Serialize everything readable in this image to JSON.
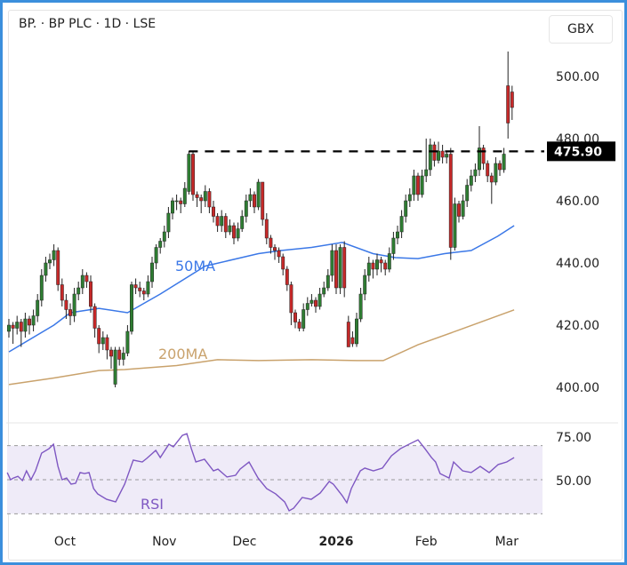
{
  "header": {
    "title": "BP. · BP PLC · 1D · LSE",
    "currency_button": "GBX"
  },
  "chart_data": {
    "type": "candlestick",
    "title": "BP. · BP PLC · 1D · LSE",
    "price_axis": {
      "ticks": [
        "500.00",
        "480.00",
        "460.00",
        "440.00",
        "420.00",
        "400.00"
      ],
      "tick_values": [
        500,
        480,
        460,
        440,
        420,
        400
      ],
      "range": [
        387,
        512
      ]
    },
    "x_axis": {
      "labels": [
        "Oct",
        "Nov",
        "Dec",
        "2026",
        "Feb",
        "Mar"
      ],
      "label_index": [
        13.7,
        38,
        57.6,
        80,
        102,
        121.7
      ]
    },
    "reference_line": {
      "value": 475.9,
      "label": "475.90",
      "start_index": 44,
      "style": "dashed"
    },
    "candles_ohlc": [
      [
        418,
        422,
        416,
        420
      ],
      [
        420,
        421,
        414,
        419
      ],
      [
        419,
        423,
        417,
        421
      ],
      [
        421,
        422,
        413,
        418
      ],
      [
        418,
        424,
        416,
        422
      ],
      [
        422,
        423,
        417,
        420
      ],
      [
        420,
        425,
        418,
        423
      ],
      [
        423,
        430,
        421,
        428
      ],
      [
        428,
        438,
        426,
        436
      ],
      [
        436,
        442,
        434,
        440
      ],
      [
        440,
        443,
        438,
        441
      ],
      [
        441,
        446,
        439,
        444
      ],
      [
        444,
        445,
        431,
        433
      ],
      [
        433,
        435,
        426,
        428
      ],
      [
        428,
        430,
        422,
        425
      ],
      [
        425,
        427,
        420,
        423
      ],
      [
        423,
        432,
        421,
        430
      ],
      [
        430,
        434,
        428,
        432
      ],
      [
        432,
        438,
        430,
        436
      ],
      [
        436,
        437,
        432,
        434
      ],
      [
        434,
        436,
        424,
        426
      ],
      [
        426,
        427,
        416,
        419
      ],
      [
        419,
        420,
        411,
        414
      ],
      [
        414,
        418,
        412,
        416
      ],
      [
        416,
        417,
        409,
        412
      ],
      [
        412,
        413,
        406,
        410
      ],
      [
        401,
        413,
        400,
        412
      ],
      [
        412,
        413,
        407,
        409
      ],
      [
        409,
        413,
        407,
        411
      ],
      [
        411,
        420,
        410,
        418
      ],
      [
        418,
        434,
        417,
        433
      ],
      [
        433,
        435,
        430,
        432
      ],
      [
        432,
        434,
        429,
        431
      ],
      [
        431,
        432,
        428,
        430
      ],
      [
        430,
        436,
        429,
        434
      ],
      [
        434,
        442,
        432,
        440
      ],
      [
        440,
        446,
        438,
        445
      ],
      [
        445,
        448,
        443,
        447
      ],
      [
        447,
        452,
        445,
        450
      ],
      [
        450,
        458,
        448,
        456
      ],
      [
        456,
        461,
        454,
        460
      ],
      [
        460,
        462,
        457,
        460
      ],
      [
        460,
        461,
        456,
        459
      ],
      [
        459,
        466,
        458,
        464
      ],
      [
        463,
        476,
        462,
        475
      ],
      [
        475,
        476,
        460,
        462
      ],
      [
        462,
        463,
        458,
        461
      ],
      [
        461,
        462,
        456,
        460
      ],
      [
        460,
        465,
        458,
        463
      ],
      [
        463,
        464,
        456,
        458
      ],
      [
        458,
        460,
        453,
        455
      ],
      [
        455,
        456,
        450,
        452
      ],
      [
        452,
        457,
        450,
        455
      ],
      [
        455,
        456,
        448,
        450
      ],
      [
        450,
        454,
        449,
        452
      ],
      [
        452,
        453,
        446,
        448
      ],
      [
        448,
        453,
        447,
        451
      ],
      [
        451,
        457,
        450,
        455
      ],
      [
        455,
        462,
        453,
        460
      ],
      [
        460,
        464,
        458,
        462
      ],
      [
        462,
        463,
        456,
        458
      ],
      [
        458,
        467,
        457,
        466
      ],
      [
        466,
        466,
        452,
        454
      ],
      [
        454,
        456,
        446,
        448
      ],
      [
        448,
        449,
        443,
        445
      ],
      [
        445,
        446,
        441,
        444
      ],
      [
        444,
        445,
        440,
        442
      ],
      [
        442,
        443,
        436,
        438
      ],
      [
        438,
        439,
        431,
        433
      ],
      [
        433,
        434,
        420,
        424
      ],
      [
        424,
        425,
        419,
        421
      ],
      [
        421,
        422,
        418,
        419
      ],
      [
        419,
        427,
        418,
        425
      ],
      [
        425,
        429,
        423,
        427
      ],
      [
        427,
        430,
        426,
        428
      ],
      [
        428,
        429,
        424,
        426
      ],
      [
        426,
        432,
        425,
        430
      ],
      [
        430,
        434,
        429,
        432
      ],
      [
        432,
        438,
        431,
        436
      ],
      [
        436,
        446,
        434,
        444
      ],
      [
        444,
        446,
        430,
        432
      ],
      [
        432,
        446,
        430,
        445
      ],
      [
        445,
        447,
        429,
        432
      ],
      [
        421,
        423,
        414,
        413
      ],
      [
        416,
        418,
        413,
        414
      ],
      [
        414,
        424,
        413,
        422
      ],
      [
        422,
        432,
        421,
        430
      ],
      [
        430,
        438,
        428,
        436
      ],
      [
        436,
        442,
        434,
        440
      ],
      [
        440,
        441,
        435,
        438
      ],
      [
        438,
        443,
        436,
        441
      ],
      [
        441,
        442,
        437,
        440
      ],
      [
        440,
        441,
        436,
        438
      ],
      [
        438,
        445,
        437,
        443
      ],
      [
        443,
        450,
        441,
        448
      ],
      [
        448,
        452,
        446,
        450
      ],
      [
        450,
        457,
        448,
        455
      ],
      [
        455,
        462,
        453,
        460
      ],
      [
        460,
        464,
        458,
        462
      ],
      [
        462,
        470,
        460,
        468
      ],
      [
        468,
        469,
        460,
        462
      ],
      [
        462,
        470,
        461,
        468
      ],
      [
        468,
        480,
        466,
        470
      ],
      [
        470,
        480,
        468,
        478
      ],
      [
        478,
        479,
        471,
        473
      ],
      [
        473,
        479,
        472,
        476
      ],
      [
        476,
        478,
        472,
        474
      ],
      [
        474,
        476,
        472,
        475
      ],
      [
        475,
        477,
        441,
        445
      ],
      [
        445,
        461,
        444,
        459
      ],
      [
        459,
        460,
        453,
        455
      ],
      [
        455,
        462,
        454,
        460
      ],
      [
        460,
        467,
        458,
        465
      ],
      [
        465,
        470,
        463,
        468
      ],
      [
        468,
        472,
        466,
        470
      ],
      [
        470,
        484,
        468,
        477
      ],
      [
        477,
        478,
        470,
        472
      ],
      [
        472,
        473,
        466,
        468
      ],
      [
        468,
        469,
        459,
        466
      ],
      [
        466,
        474,
        465,
        472
      ],
      [
        472,
        473,
        468,
        470
      ],
      [
        470,
        477,
        469,
        475
      ],
      [
        497,
        508,
        480,
        485
      ],
      [
        495,
        497,
        486,
        490
      ]
    ],
    "series": [
      {
        "name": "50MA",
        "color": "#3b78e7",
        "points": [
          [
            0,
            411.4
          ],
          [
            11,
            420
          ],
          [
            15,
            424
          ],
          [
            22,
            425.4
          ],
          [
            29,
            424
          ],
          [
            37,
            430
          ],
          [
            48,
            439
          ],
          [
            61,
            443
          ],
          [
            66.5,
            444
          ],
          [
            74,
            445
          ],
          [
            81.5,
            446.6
          ],
          [
            89,
            443
          ],
          [
            94.5,
            441.7
          ],
          [
            100,
            441.4
          ],
          [
            106.5,
            443
          ],
          [
            113,
            444
          ],
          [
            119.5,
            448.6
          ],
          [
            123.5,
            452
          ]
        ]
      },
      {
        "name": "200MA",
        "color": "#c9a26c",
        "points": [
          [
            0,
            400.9
          ],
          [
            11,
            403
          ],
          [
            22,
            405.4
          ],
          [
            28.3,
            405.7
          ],
          [
            41,
            407
          ],
          [
            51,
            408.9
          ],
          [
            61,
            408.6
          ],
          [
            74,
            408.9
          ],
          [
            85,
            408.6
          ],
          [
            91.5,
            408.6
          ],
          [
            100,
            413.7
          ],
          [
            111,
            418.9
          ],
          [
            123.5,
            424.9
          ]
        ]
      }
    ],
    "rsi": {
      "label": "RSI",
      "ticks": [
        "75.00",
        "50.00"
      ],
      "tick_values": [
        75,
        50
      ],
      "band": [
        30,
        70
      ],
      "midline": 50,
      "points": [
        [
          -0.4,
          54.2
        ],
        [
          0.4,
          50
        ],
        [
          1.1,
          51
        ],
        [
          2.2,
          52
        ],
        [
          3.3,
          49.5
        ],
        [
          4.3,
          55.2
        ],
        [
          5.4,
          50
        ],
        [
          6.5,
          55.2
        ],
        [
          8,
          65.6
        ],
        [
          9.8,
          68.2
        ],
        [
          10.9,
          70.8
        ],
        [
          12,
          57.8
        ],
        [
          13,
          50
        ],
        [
          14.1,
          51
        ],
        [
          15.2,
          47.4
        ],
        [
          16.3,
          47.9
        ],
        [
          17.4,
          54.2
        ],
        [
          18.5,
          53.6
        ],
        [
          19.6,
          54.2
        ],
        [
          20.7,
          44.8
        ],
        [
          21.7,
          41.7
        ],
        [
          23.9,
          38.5
        ],
        [
          26.1,
          37
        ],
        [
          28.3,
          47.4
        ],
        [
          30.4,
          61.5
        ],
        [
          32.6,
          60.4
        ],
        [
          33.7,
          62.5
        ],
        [
          35.9,
          67.2
        ],
        [
          37,
          63
        ],
        [
          39.1,
          70.8
        ],
        [
          40.2,
          69.3
        ],
        [
          42.4,
          76
        ],
        [
          43.5,
          77
        ],
        [
          44.6,
          68.2
        ],
        [
          45.7,
          60.4
        ],
        [
          47.8,
          62
        ],
        [
          50,
          55.2
        ],
        [
          51.1,
          56.2
        ],
        [
          53.3,
          51.6
        ],
        [
          55.4,
          52.6
        ],
        [
          56.5,
          56.2
        ],
        [
          58.7,
          60.4
        ],
        [
          60.9,
          51
        ],
        [
          63,
          44.8
        ],
        [
          65.2,
          41.7
        ],
        [
          67.4,
          37
        ],
        [
          68.5,
          31.8
        ],
        [
          69.6,
          33.3
        ],
        [
          71.7,
          39.6
        ],
        [
          73.9,
          38.5
        ],
        [
          76.1,
          42.2
        ],
        [
          78.3,
          49
        ],
        [
          79.3,
          47.4
        ],
        [
          81.5,
          40.6
        ],
        [
          82.6,
          36.5
        ],
        [
          83.7,
          44.8
        ],
        [
          85.9,
          55.2
        ],
        [
          87,
          56.8
        ],
        [
          89.1,
          55.2
        ],
        [
          91.3,
          56.8
        ],
        [
          93.5,
          64
        ],
        [
          95.7,
          68.2
        ],
        [
          97.8,
          70.8
        ],
        [
          100,
          73.4
        ],
        [
          101.7,
          68.2
        ],
        [
          103.3,
          63
        ],
        [
          104.3,
          60.4
        ],
        [
          105.4,
          53.6
        ],
        [
          107.6,
          51
        ],
        [
          108.7,
          60.4
        ],
        [
          110.9,
          55.2
        ],
        [
          113,
          54.2
        ],
        [
          115.2,
          57.8
        ],
        [
          117.4,
          54.2
        ],
        [
          119.6,
          58.9
        ],
        [
          121.7,
          60.4
        ],
        [
          123.5,
          63
        ]
      ]
    },
    "colors": {
      "up": "#2e7d32",
      "down": "#c62828",
      "rsi": "#7e57c2",
      "rsi_band": "#efebf8"
    }
  }
}
